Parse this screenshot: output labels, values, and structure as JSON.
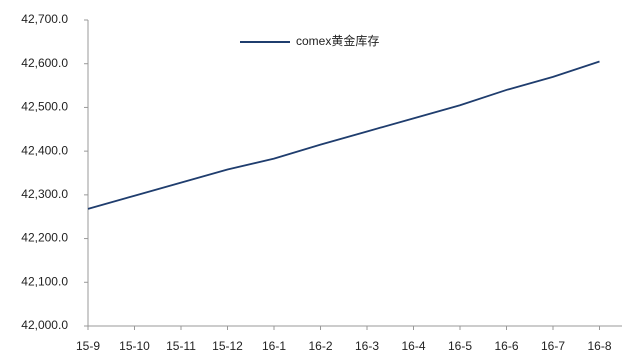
{
  "chart_data": {
    "type": "line",
    "categories": [
      "15-9",
      "15-10",
      "15-11",
      "15-12",
      "16-1",
      "16-2",
      "16-3",
      "16-4",
      "16-5",
      "16-6",
      "16-7",
      "16-8"
    ],
    "series": [
      {
        "name": "comex黄金库存",
        "color": "#1f3d6e",
        "values": [
          42268,
          42298,
          42328,
          42358,
          42383,
          42415,
          42445,
          42475,
          42505,
          42540,
          42570,
          42605
        ]
      }
    ],
    "ylim": [
      42000,
      42700
    ],
    "yticks": [
      {
        "value": 42000,
        "label": "42,000.0"
      },
      {
        "value": 42100,
        "label": "42,100.0"
      },
      {
        "value": 42200,
        "label": "42,200.0"
      },
      {
        "value": 42300,
        "label": "42,300.0"
      },
      {
        "value": 42400,
        "label": "42,400.0"
      },
      {
        "value": 42500,
        "label": "42,500.0"
      },
      {
        "value": 42600,
        "label": "42,600.0"
      },
      {
        "value": 42700,
        "label": "42,700.0"
      }
    ],
    "legend": "top"
  }
}
